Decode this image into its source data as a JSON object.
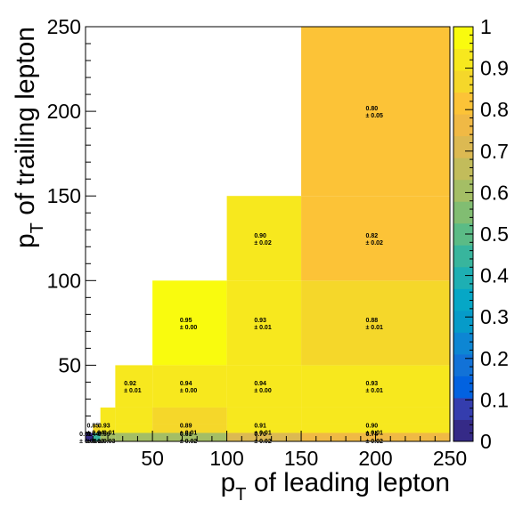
{
  "chart_data": {
    "type": "heatmap",
    "xlabel": {
      "p": "p",
      "sub": "T",
      "rest": " of leading lepton"
    },
    "ylabel": {
      "p": "p",
      "sub": "T",
      "rest": " of trailing lepton"
    },
    "xlim": [
      5,
      250
    ],
    "ylim": [
      5,
      250
    ],
    "zlim": [
      0,
      1
    ],
    "x_ticks": [
      "50",
      "100",
      "150",
      "200",
      "250"
    ],
    "y_ticks": [
      "50",
      "100",
      "150",
      "200",
      "250"
    ],
    "z_ticks": [
      "0",
      "0.1",
      "0.2",
      "0.3",
      "0.4",
      "0.5",
      "0.6",
      "0.7",
      "0.8",
      "0.9",
      "1"
    ],
    "x_edges": [
      5,
      10,
      15,
      25,
      50,
      100,
      150,
      250
    ],
    "y_edges": [
      5,
      10,
      15,
      25,
      50,
      100,
      150,
      250
    ],
    "palette": [
      "#352a87",
      "#343dae",
      "#0262e0",
      "#1272d7",
      "#0d86d3",
      "#069bc9",
      "#06a7c6",
      "#1eafb3",
      "#38b59d",
      "#5bbb86",
      "#81bd72",
      "#a4be65",
      "#c2bc5b",
      "#dcb952",
      "#f0b945",
      "#fcc337",
      "#f5d72a",
      "#f7e81e",
      "#f9fb0e"
    ],
    "cells": [
      {
        "x": [
          5,
          10
        ],
        "y": [
          5,
          10
        ],
        "value": 0.01,
        "label": "0.01",
        "err": "± 0.00"
      },
      {
        "x": [
          10,
          15
        ],
        "y": [
          5,
          10
        ],
        "value": 0.44,
        "label": "0.44",
        "err": "± 0.03"
      },
      {
        "x": [
          15,
          25
        ],
        "y": [
          5,
          10
        ],
        "value": 0.59,
        "label": "0.59",
        "err": "± 0.03"
      },
      {
        "x": [
          25,
          50
        ],
        "y": [
          5,
          10
        ],
        "value": 0.59,
        "label": "",
        "err": ""
      },
      {
        "x": [
          50,
          100
        ],
        "y": [
          5,
          10
        ],
        "value": 0.61,
        "label": "0.61",
        "err": "± 0.02"
      },
      {
        "x": [
          100,
          150
        ],
        "y": [
          5,
          10
        ],
        "value": 0.7,
        "label": "0.70",
        "err": "± 0.02"
      },
      {
        "x": [
          150,
          250
        ],
        "y": [
          5,
          10
        ],
        "value": 0.74,
        "label": "0.74",
        "err": "± 0.02"
      },
      {
        "x": [
          10,
          15
        ],
        "y": [
          10,
          15
        ],
        "value": 0.85,
        "label": "0.85",
        "err": "± 0.04"
      },
      {
        "x": [
          15,
          25
        ],
        "y": [
          10,
          15
        ],
        "value": 0.93,
        "label": "0.93",
        "err": "± 0.01"
      },
      {
        "x": [
          25,
          50
        ],
        "y": [
          10,
          15
        ],
        "value": 0.93,
        "label": "",
        "err": ""
      },
      {
        "x": [
          50,
          100
        ],
        "y": [
          10,
          15
        ],
        "value": 0.89,
        "label": "0.89",
        "err": "± 0.01"
      },
      {
        "x": [
          100,
          150
        ],
        "y": [
          10,
          15
        ],
        "value": 0.91,
        "label": "0.91",
        "err": "± 0.01"
      },
      {
        "x": [
          150,
          250
        ],
        "y": [
          10,
          15
        ],
        "value": 0.9,
        "label": "0.90",
        "err": "± 0.01"
      },
      {
        "x": [
          15,
          25
        ],
        "y": [
          15,
          25
        ],
        "value": 0.93,
        "label": "",
        "err": ""
      },
      {
        "x": [
          25,
          50
        ],
        "y": [
          15,
          25
        ],
        "value": 0.93,
        "label": "",
        "err": ""
      },
      {
        "x": [
          50,
          100
        ],
        "y": [
          15,
          25
        ],
        "value": 0.89,
        "label": "",
        "err": ""
      },
      {
        "x": [
          100,
          150
        ],
        "y": [
          15,
          25
        ],
        "value": 0.91,
        "label": "",
        "err": ""
      },
      {
        "x": [
          150,
          250
        ],
        "y": [
          15,
          25
        ],
        "value": 0.9,
        "label": "",
        "err": ""
      },
      {
        "x": [
          25,
          50
        ],
        "y": [
          25,
          50
        ],
        "value": 0.92,
        "label": "0.92",
        "err": "± 0.01"
      },
      {
        "x": [
          50,
          100
        ],
        "y": [
          25,
          50
        ],
        "value": 0.94,
        "label": "0.94",
        "err": "± 0.00"
      },
      {
        "x": [
          100,
          150
        ],
        "y": [
          25,
          50
        ],
        "value": 0.94,
        "label": "0.94",
        "err": "± 0.00"
      },
      {
        "x": [
          150,
          250
        ],
        "y": [
          25,
          50
        ],
        "value": 0.93,
        "label": "0.93",
        "err": "± 0.01"
      },
      {
        "x": [
          50,
          100
        ],
        "y": [
          50,
          100
        ],
        "value": 0.95,
        "label": "0.95",
        "err": "± 0.00"
      },
      {
        "x": [
          100,
          150
        ],
        "y": [
          50,
          100
        ],
        "value": 0.93,
        "label": "0.93",
        "err": "± 0.01"
      },
      {
        "x": [
          150,
          250
        ],
        "y": [
          50,
          100
        ],
        "value": 0.88,
        "label": "0.88",
        "err": "± 0.01"
      },
      {
        "x": [
          100,
          150
        ],
        "y": [
          100,
          150
        ],
        "value": 0.9,
        "label": "0.90",
        "err": "± 0.02"
      },
      {
        "x": [
          150,
          250
        ],
        "y": [
          100,
          150
        ],
        "value": 0.82,
        "label": "0.82",
        "err": "± 0.02"
      },
      {
        "x": [
          150,
          250
        ],
        "y": [
          150,
          250
        ],
        "value": 0.8,
        "label": "0.80",
        "err": "± 0.05"
      }
    ],
    "grid": false,
    "legend": "color-scale-right"
  }
}
